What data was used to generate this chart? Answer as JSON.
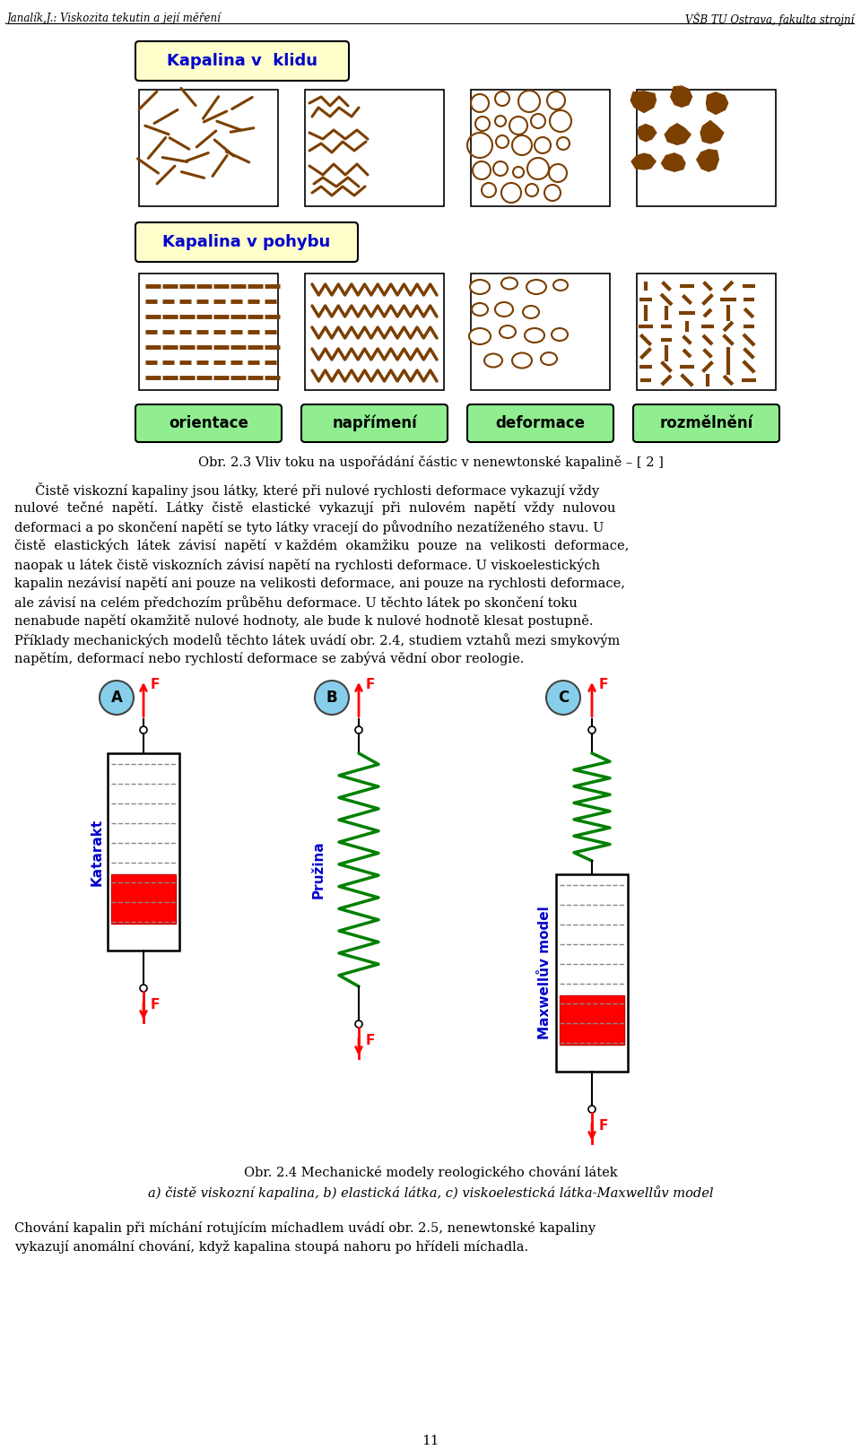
{
  "header_left": "Janalík,J.: Viskozita tekutin a její měření",
  "header_right": "VŠB TU Ostrava, fakulta strojní",
  "label_klidu": "Kapalina v  klidu",
  "label_pohybu": "Kapalina v pohybu",
  "box_labels": [
    "orientace",
    "napřímení",
    "deformace",
    "rozmělnění"
  ],
  "fig_caption": "Obr. 2.3 Vliv toku na uspořádání částic v nenewtonské kapalině – [ 2 ]",
  "model_labels": [
    "A",
    "B",
    "C"
  ],
  "model_names": [
    "Katarakt",
    "Pružina",
    "Maxwellův model"
  ],
  "fig2_caption_line1": "Obr. 2.4 Mechanické modely reologického chování látek",
  "fig2_caption_line2": "a) čistě viskozní kapalina, b) elastická látka, c) viskoelestická látka-Maxwellův model",
  "page_number": "11",
  "bg_color": "#ffffff",
  "blue_text": "#0000cd",
  "green_box_color": "#90ee90",
  "yellow_box_color": "#ffffcc",
  "brown_color": "#7B3F00",
  "red_color": "#ff0000",
  "green_spring_color": "#008000",
  "circle_color": "#87CEEB",
  "body_lines": [
    "     Čistě viskozní kapaliny jsou látky, které při nulové rychlosti deformace vykazují vždy",
    "nulové  tečné  napětí.  Látky  čistě  elastické  vykazují  při  nulovém  napětí  vždy  nulovou",
    "deformaci a po skončení napětí se tyto látky vracejí do původního nezatíženého stavu. U",
    "čistě  elastických  látek  závisí  napětí  v každém  okamžiku  pouze  na  velikosti  deformace,",
    "naopak u látek čistě viskozních závisí napětí na rychlosti deformace. U viskoelestických",
    "kapalin nezávisí napětí ani pouze na velikosti deformace, ani pouze na rychlosti deformace,",
    "ale závisí na celém předchozím průběhu deformace. U těchto látek po skončení toku",
    "nenabude napětí okamžitě nulové hodnoty, ale bude k nulové hodnotě klesat postupně.",
    "Příklady mechanických modelů těchto látek uvádí obr. 2.4, studiem vztahů mezi smykovým",
    "napětím, deformací nebo rychlostí deformace se zabývá vědní obor reologie."
  ],
  "final_lines": [
    "Chování kapalin při míchání rotujícím míchadlem uvádí obr. 2.5, nenewtonské kapaliny",
    "vykazují anomální chování, když kapalina stoupá nahoru po hřídeli míchadla."
  ]
}
